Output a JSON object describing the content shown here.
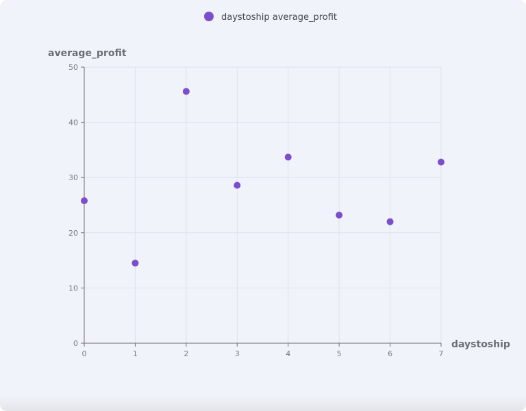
{
  "colors": {
    "accent": "#7c4ecc",
    "background": "#f0f3f9",
    "grid": "#dde1ea",
    "axis": "#6b6e74"
  },
  "chart_data": {
    "type": "scatter",
    "series": [
      {
        "name": "daystoship average_profit",
        "x": [
          0,
          1,
          2,
          3,
          4,
          5,
          6,
          7
        ],
        "y": [
          25.8,
          14.5,
          45.6,
          28.6,
          33.7,
          23.2,
          22.0,
          32.8
        ]
      }
    ],
    "xlabel": "daystoship",
    "ylabel": "average_profit",
    "xlim": [
      0,
      7
    ],
    "ylim": [
      0,
      50
    ],
    "x_ticks": [
      "0",
      "1",
      "2",
      "3",
      "4",
      "5",
      "6",
      "7"
    ],
    "y_ticks": [
      "0",
      "10",
      "20",
      "30",
      "40",
      "50"
    ],
    "grid": true,
    "legend": "top-center"
  }
}
